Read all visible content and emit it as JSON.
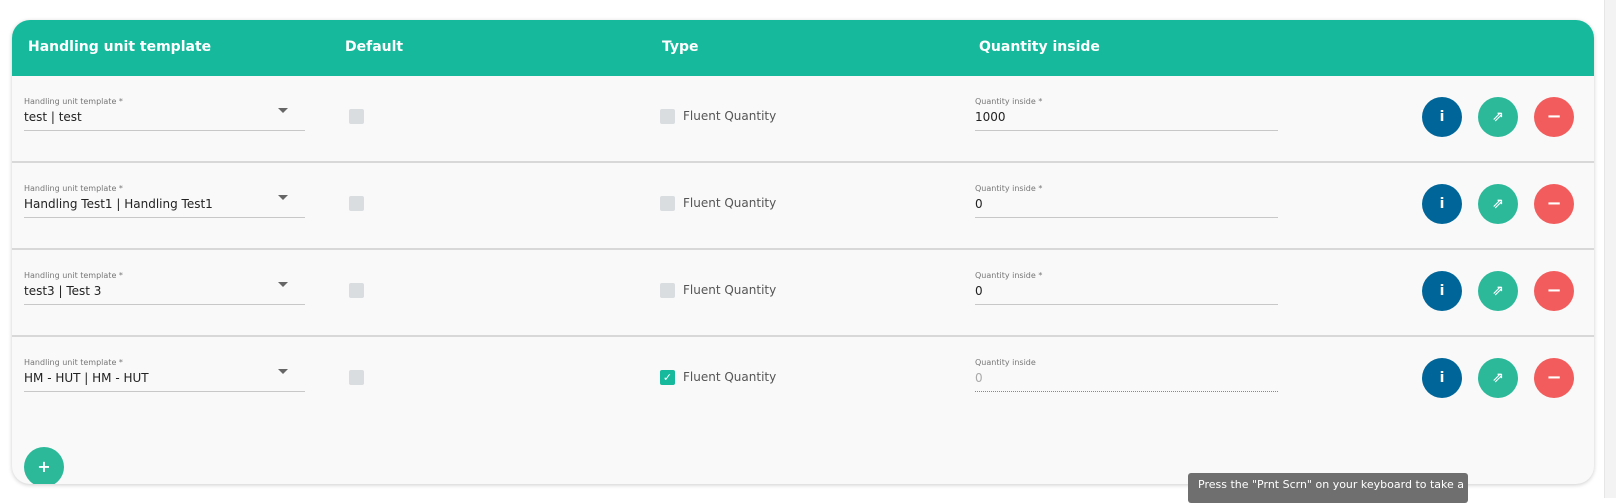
{
  "headers": {
    "template": "Handling unit template",
    "default": "Default",
    "type": "Type",
    "quantity": "Quantity inside"
  },
  "rows": [
    {
      "template_label": "Handling unit template *",
      "template_value": "test | test",
      "default_checked": false,
      "type_checked": false,
      "type_label": "Fluent Quantity",
      "qty_label": "Quantity inside *",
      "qty_value": "1000"
    },
    {
      "template_label": "Handling unit template *",
      "template_value": "Handling Test1 | Handling Test1",
      "default_checked": false,
      "type_checked": false,
      "type_label": "Fluent Quantity",
      "qty_label": "Quantity inside *",
      "qty_value": "0"
    },
    {
      "template_label": "Handling unit template *",
      "template_value": "test3 | Test 3",
      "default_checked": false,
      "type_checked": false,
      "type_label": "Fluent Quantity",
      "qty_label": "Quantity inside *",
      "qty_value": "0"
    },
    {
      "template_label": "Handling unit template *",
      "template_value": "HM - HUT | HM - HUT",
      "default_checked": false,
      "type_checked": true,
      "type_label": "Fluent Quantity",
      "qty_label": "Quantity inside",
      "qty_value": "0",
      "qty_disabled": true
    }
  ],
  "actions": {
    "info": "i",
    "open": "⇗",
    "remove": "−",
    "add": "+"
  },
  "colors": {
    "header": "#17b99c",
    "info": "#006699",
    "open": "#2bb99a",
    "remove": "#f25c5c"
  },
  "tooltip": "Press the \"Prnt Scrn\" on your keyboard to take a"
}
